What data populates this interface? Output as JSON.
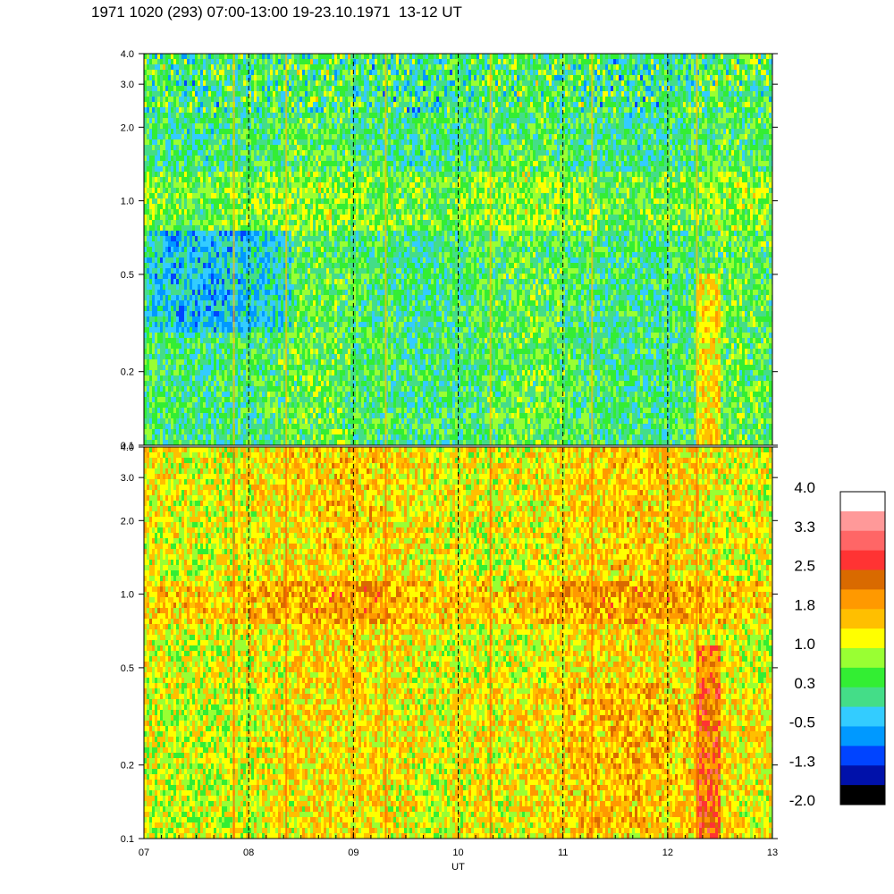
{
  "header": {
    "title": "1971 1020 (293) 07:00-13:00 19-23.10.1971  13-12 UT"
  },
  "chart_data": {
    "type": "heatmap",
    "title": "1971 1020 (293) 07:00-13:00 19-23.10.1971  13-12 UT",
    "xlabel": "UT",
    "x_range": [
      7,
      13
    ],
    "x_ticks": [
      7,
      8,
      9,
      10,
      11,
      12,
      13
    ],
    "x_tick_labels": [
      "07",
      "08",
      "09",
      "10",
      "11",
      "12",
      "13"
    ],
    "y_scale": "log",
    "panels": [
      {
        "name": "",
        "ylim": [
          0.1,
          4.0
        ],
        "y_ticks": [
          0.1,
          0.2,
          0.5,
          1.0,
          2.0,
          3.0,
          4.0
        ],
        "y_tick_labels": [
          "0.1",
          "0.2",
          "0.5",
          "1.0",
          "2.0",
          "3.0",
          "4.0"
        ]
      },
      {
        "name": "",
        "ylim": [
          0.1,
          4.0
        ],
        "y_ticks": [
          0.1,
          0.2,
          0.5,
          1.0,
          2.0,
          3.0,
          4.0
        ],
        "y_tick_labels": [
          "0.1",
          "0.2",
          "0.5",
          "1.0",
          "2.0",
          "3.0",
          "4.0"
        ]
      }
    ],
    "hour_markers": [
      8,
      9,
      10,
      11,
      12
    ],
    "colorbar": {
      "range": [
        -2.0,
        4.0
      ],
      "labels": [
        "4.0",
        "3.3",
        "2.5",
        "1.8",
        "1.0",
        "0.3",
        "-0.5",
        "-1.3",
        "-2.0"
      ],
      "colors": [
        "#ffffff",
        "#ff9999",
        "#ff6666",
        "#ff3333",
        "#d96a00",
        "#ff9900",
        "#ffbf00",
        "#ffff00",
        "#99ff33",
        "#33ee33",
        "#44dd88",
        "#33ccff",
        "#0099ff",
        "#0044ff",
        "#0011aa",
        "#000000"
      ]
    }
  }
}
